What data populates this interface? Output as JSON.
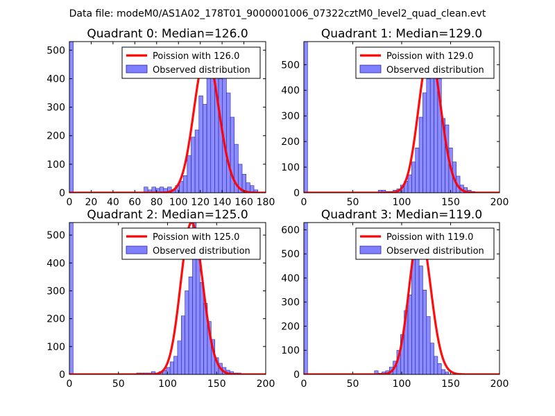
{
  "suptitle": "Data file: modeM0/AS1A02_178T01_9000001006_07322cztM0_level2_quad_clean.evt",
  "legend": {
    "observed_label": "Observed distribution"
  },
  "colors": {
    "bar_fill": "#8080ff",
    "bar_edge": "#2222aa",
    "curve": "#ff0000"
  },
  "chart_data": [
    {
      "type": "bar",
      "title": "Quadrant 0: Median=126.0",
      "poisson_label": "Poission with 126.0",
      "median": 126.0,
      "xlim": [
        0,
        180
      ],
      "ylim": [
        0,
        530
      ],
      "xticks": [
        "0",
        "20",
        "40",
        "60",
        "80",
        "100",
        "120",
        "140",
        "160",
        "180"
      ],
      "xtick_values": [
        0,
        20,
        40,
        60,
        80,
        100,
        120,
        140,
        160,
        180
      ],
      "yticks": [
        "0",
        "100",
        "200",
        "300",
        "400",
        "500"
      ],
      "ytick_values": [
        0,
        100,
        200,
        300,
        400,
        500
      ],
      "bin_edges": [
        0,
        3.6,
        7.2,
        10.8,
        14.4,
        18,
        21.6,
        25.2,
        28.8,
        32.4,
        36,
        39.6,
        43.2,
        46.8,
        50.4,
        54,
        57.6,
        61.2,
        64.8,
        68.4,
        72,
        75.6,
        79.2,
        82.8,
        86.4,
        90,
        93.6,
        97.2,
        100.8,
        104.4,
        108,
        111.6,
        115.2,
        118.8,
        122.4,
        126,
        129.6,
        133.2,
        136.8,
        140.4,
        144,
        147.6,
        151.2,
        154.8,
        158.4,
        162,
        165.6,
        169.2,
        172.8
      ],
      "counts": [
        530,
        0,
        0,
        0,
        0,
        0,
        0,
        0,
        0,
        0,
        0,
        0,
        0,
        0,
        0,
        0,
        0,
        0,
        0,
        20,
        10,
        20,
        15,
        20,
        15,
        20,
        10,
        25,
        40,
        60,
        130,
        195,
        220,
        340,
        310,
        405,
        490,
        475,
        400,
        435,
        350,
        265,
        170,
        100,
        65,
        35,
        25,
        10
      ]
    },
    {
      "type": "bar",
      "title": "Quadrant 1: Median=129.0",
      "poisson_label": "Poission with 129.0",
      "median": 129.0,
      "xlim": [
        0,
        200
      ],
      "ylim": [
        0,
        590
      ],
      "xticks": [
        "0",
        "50",
        "100",
        "150",
        "200"
      ],
      "xtick_values": [
        0,
        50,
        100,
        150,
        200
      ],
      "yticks": [
        "0",
        "100",
        "200",
        "300",
        "400",
        "500"
      ],
      "yticks_values_note": "",
      "ytick_values": [
        0,
        100,
        200,
        300,
        400,
        500
      ],
      "bin_edges": [
        0,
        3.8,
        7.6,
        11.4,
        15.2,
        19,
        22.8,
        26.6,
        30.4,
        34.2,
        38,
        41.8,
        45.6,
        49.4,
        53.2,
        57,
        60.8,
        64.6,
        68.4,
        72.2,
        76,
        79.8,
        83.6,
        87.4,
        91.2,
        95,
        98.8,
        102.6,
        106.4,
        110.2,
        114,
        117.8,
        121.6,
        125.4,
        129.2,
        133,
        136.8,
        140.6,
        144.4,
        148.2,
        152,
        155.8,
        159.6,
        163.4,
        167.2,
        171,
        174.8,
        178.6,
        182.4,
        186.2
      ],
      "counts": [
        590,
        0,
        0,
        0,
        0,
        0,
        0,
        0,
        0,
        0,
        0,
        0,
        0,
        0,
        0,
        0,
        0,
        0,
        0,
        0,
        10,
        10,
        5,
        5,
        10,
        15,
        30,
        45,
        70,
        120,
        175,
        295,
        390,
        445,
        540,
        550,
        445,
        290,
        265,
        175,
        120,
        65,
        30,
        20,
        10,
        5,
        0,
        0,
        0
      ]
    },
    {
      "type": "bar",
      "title": "Quadrant 2: Median=125.0",
      "poisson_label": "Poission with 125.0",
      "median": 125.0,
      "xlim": [
        0,
        200
      ],
      "ylim": [
        0,
        545
      ],
      "xticks": [
        "0",
        "50",
        "100",
        "150",
        "200"
      ],
      "xtick_values": [
        0,
        50,
        100,
        150,
        200
      ],
      "yticks": [
        "0",
        "100",
        "200",
        "300",
        "400",
        "500"
      ],
      "ytick_values": [
        0,
        100,
        200,
        300,
        400,
        500
      ],
      "bin_edges": [
        0,
        3.8,
        7.6,
        11.4,
        15.2,
        19,
        22.8,
        26.6,
        30.4,
        34.2,
        38,
        41.8,
        45.6,
        49.4,
        53.2,
        57,
        60.8,
        64.6,
        68.4,
        72.2,
        76,
        79.8,
        83.6,
        87.4,
        91.2,
        95,
        98.8,
        102.6,
        106.4,
        110.2,
        114,
        117.8,
        121.6,
        125.4,
        129.2,
        133,
        136.8,
        140.6,
        144.4,
        148.2,
        152,
        155.8,
        159.6,
        163.4,
        167.2,
        171,
        174.8,
        178.6,
        182.4,
        186.2
      ],
      "counts": [
        545,
        0,
        0,
        0,
        0,
        0,
        0,
        0,
        0,
        0,
        0,
        0,
        0,
        0,
        0,
        0,
        0,
        0,
        5,
        5,
        5,
        5,
        10,
        5,
        10,
        15,
        25,
        45,
        65,
        120,
        210,
        300,
        350,
        545,
        520,
        330,
        255,
        190,
        125,
        60,
        40,
        25,
        15,
        10,
        5,
        5,
        0,
        0,
        0
      ]
    },
    {
      "type": "bar",
      "title": "Quadrant 3: Median=119.0",
      "poisson_label": "Poission with 119.0",
      "median": 119.0,
      "xlim": [
        0,
        200
      ],
      "ylim": [
        0,
        630
      ],
      "xticks": [
        "0",
        "50",
        "100",
        "150",
        "200"
      ],
      "xtick_values": [
        0,
        50,
        100,
        150,
        200
      ],
      "yticks": [
        "0",
        "100",
        "200",
        "300",
        "400",
        "500",
        "600"
      ],
      "ytick_values": [
        0,
        100,
        200,
        300,
        400,
        500,
        600
      ],
      "bin_edges": [
        0,
        3.8,
        7.6,
        11.4,
        15.2,
        19,
        22.8,
        26.6,
        30.4,
        34.2,
        38,
        41.8,
        45.6,
        49.4,
        53.2,
        57,
        60.8,
        64.6,
        68.4,
        72.2,
        76,
        79.8,
        83.6,
        87.4,
        91.2,
        95,
        98.8,
        102.6,
        106.4,
        110.2,
        114,
        117.8,
        121.6,
        125.4,
        129.2,
        133,
        136.8,
        140.6,
        144.4,
        148.2,
        152,
        155.8,
        159.6,
        163.4,
        167.2,
        171,
        174.8,
        178.6,
        182.4,
        186.2
      ],
      "counts": [
        630,
        0,
        0,
        0,
        0,
        0,
        0,
        0,
        0,
        0,
        0,
        0,
        0,
        0,
        0,
        0,
        0,
        0,
        0,
        15,
        5,
        10,
        15,
        30,
        55,
        100,
        165,
        265,
        330,
        510,
        600,
        450,
        350,
        240,
        130,
        75,
        45,
        20,
        10,
        0,
        0,
        0,
        0,
        0,
        0,
        0,
        0,
        0,
        0
      ]
    }
  ]
}
